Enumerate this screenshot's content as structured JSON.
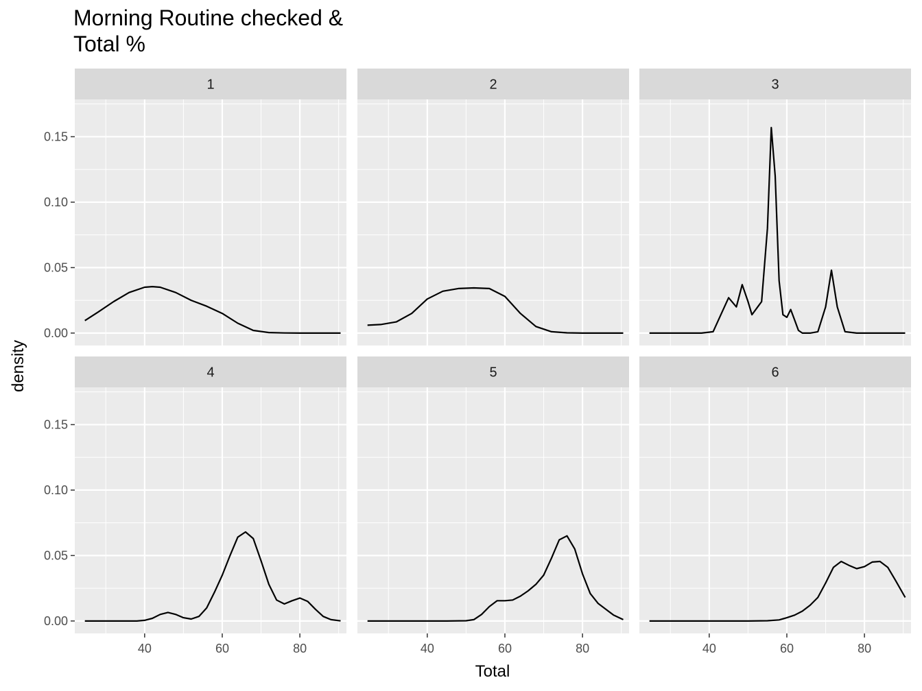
{
  "chart_data": {
    "type": "line",
    "title": "Morning Routine checked & Total %",
    "title_lines": [
      "Morning Routine checked &",
      "Total %"
    ],
    "xlabel": "Total",
    "ylabel": "density",
    "xlim": [
      22,
      92
    ],
    "ylim": [
      -0.0095,
      0.1785
    ],
    "x_ticks": [
      40,
      60,
      80
    ],
    "x_tick_labels": [
      "40",
      "60",
      "80"
    ],
    "y_ticks": [
      0.0,
      0.05,
      0.1,
      0.15
    ],
    "y_tick_labels": [
      "0.00",
      "0.05",
      "0.10",
      "0.15"
    ],
    "grid": true,
    "facets": [
      {
        "label": "1",
        "x": [
          24.6,
          28,
          32,
          36,
          40,
          42,
          44,
          48,
          52,
          56,
          60,
          64,
          68,
          72,
          76,
          80,
          84,
          88,
          90.5
        ],
        "y": [
          0.0095,
          0.016,
          0.024,
          0.031,
          0.035,
          0.0355,
          0.035,
          0.031,
          0.025,
          0.0205,
          0.015,
          0.0075,
          0.002,
          0.0004,
          0.0001,
          0.0,
          0.0,
          0.0,
          0.0
        ]
      },
      {
        "label": "2",
        "x": [
          24.6,
          28,
          32,
          36,
          40,
          44,
          48,
          52,
          56,
          60,
          64,
          68,
          72,
          76,
          80,
          84,
          88,
          90.5
        ],
        "y": [
          0.006,
          0.0065,
          0.0085,
          0.015,
          0.026,
          0.032,
          0.034,
          0.0345,
          0.034,
          0.028,
          0.015,
          0.005,
          0.001,
          0.0002,
          0.0,
          0.0,
          0.0,
          0.0
        ]
      },
      {
        "label": "3",
        "x": [
          24.6,
          38,
          41,
          43,
          45,
          47,
          48.5,
          50,
          51,
          52.5,
          53.5,
          55,
          56,
          57,
          58,
          59,
          60,
          61,
          62,
          63,
          64,
          66,
          68,
          70,
          71.5,
          73,
          75,
          78,
          85,
          90.5
        ],
        "y": [
          0.0,
          0.0,
          0.001,
          0.014,
          0.027,
          0.02,
          0.037,
          0.024,
          0.014,
          0.02,
          0.024,
          0.08,
          0.157,
          0.12,
          0.04,
          0.014,
          0.012,
          0.018,
          0.01,
          0.002,
          0.0,
          0.0,
          0.001,
          0.02,
          0.048,
          0.02,
          0.001,
          0.0,
          0.0,
          0.0
        ]
      },
      {
        "label": "4",
        "x": [
          24.6,
          38,
          40,
          42,
          44,
          46,
          48,
          50,
          52,
          54,
          56,
          58,
          60,
          62,
          64,
          66,
          68,
          70,
          72,
          74,
          76,
          78,
          80,
          82,
          84,
          86,
          88,
          90.5
        ],
        "y": [
          0.0,
          0.0,
          0.0005,
          0.002,
          0.005,
          0.0065,
          0.005,
          0.0025,
          0.0015,
          0.0035,
          0.01,
          0.022,
          0.035,
          0.05,
          0.064,
          0.068,
          0.063,
          0.046,
          0.028,
          0.016,
          0.013,
          0.0155,
          0.0175,
          0.015,
          0.009,
          0.0035,
          0.001,
          0.0001
        ]
      },
      {
        "label": "5",
        "x": [
          24.6,
          45,
          50,
          52,
          54,
          56,
          58,
          60,
          62,
          64,
          66,
          68,
          70,
          72,
          74,
          76,
          78,
          80,
          82,
          84,
          86,
          88,
          90.5
        ],
        "y": [
          0.0,
          0.0,
          0.0002,
          0.001,
          0.005,
          0.011,
          0.0155,
          0.0155,
          0.016,
          0.019,
          0.023,
          0.028,
          0.035,
          0.048,
          0.062,
          0.065,
          0.055,
          0.036,
          0.021,
          0.0135,
          0.009,
          0.0045,
          0.001
        ]
      },
      {
        "label": "6",
        "x": [
          24.6,
          50,
          55,
          58,
          60,
          62,
          64,
          66,
          68,
          70,
          72,
          74,
          76,
          78,
          80,
          82,
          84,
          86,
          88,
          90.5
        ],
        "y": [
          0.0,
          0.0,
          0.0002,
          0.0008,
          0.0025,
          0.0045,
          0.0075,
          0.012,
          0.018,
          0.029,
          0.041,
          0.0455,
          0.0425,
          0.04,
          0.0415,
          0.045,
          0.0455,
          0.041,
          0.031,
          0.018
        ]
      }
    ]
  }
}
